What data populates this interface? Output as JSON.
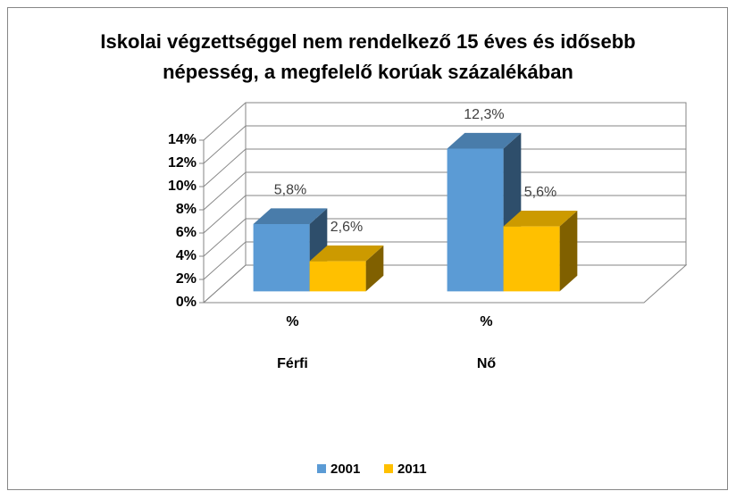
{
  "chart_data": {
    "type": "bar3d",
    "title": "Iskolai végzettséggel nem rendelkező 15 éves és idősebb népesség, a megfelelő korúak százalékában",
    "categories": [
      "%",
      "%"
    ],
    "groups": [
      "Férfi",
      "Nő"
    ],
    "series": [
      {
        "name": "2001",
        "color": "#5b9bd5",
        "values": [
          5.8,
          12.3
        ],
        "value_labels": [
          "5,8%",
          "12,3%"
        ]
      },
      {
        "name": "2011",
        "color": "#ffc000",
        "values": [
          2.6,
          5.6
        ],
        "value_labels": [
          "2,6%",
          "5,6%"
        ]
      }
    ],
    "ylim": [
      0,
      14
    ],
    "yticks": [
      {
        "value": 0,
        "label": "0%"
      },
      {
        "value": 2,
        "label": "2%"
      },
      {
        "value": 4,
        "label": "4%"
      },
      {
        "value": 6,
        "label": "6%"
      },
      {
        "value": 8,
        "label": "8%"
      },
      {
        "value": 10,
        "label": "10%"
      },
      {
        "value": 12,
        "label": "12%"
      },
      {
        "value": 14,
        "label": "14%"
      }
    ],
    "grid": true,
    "legend": "bottom"
  }
}
